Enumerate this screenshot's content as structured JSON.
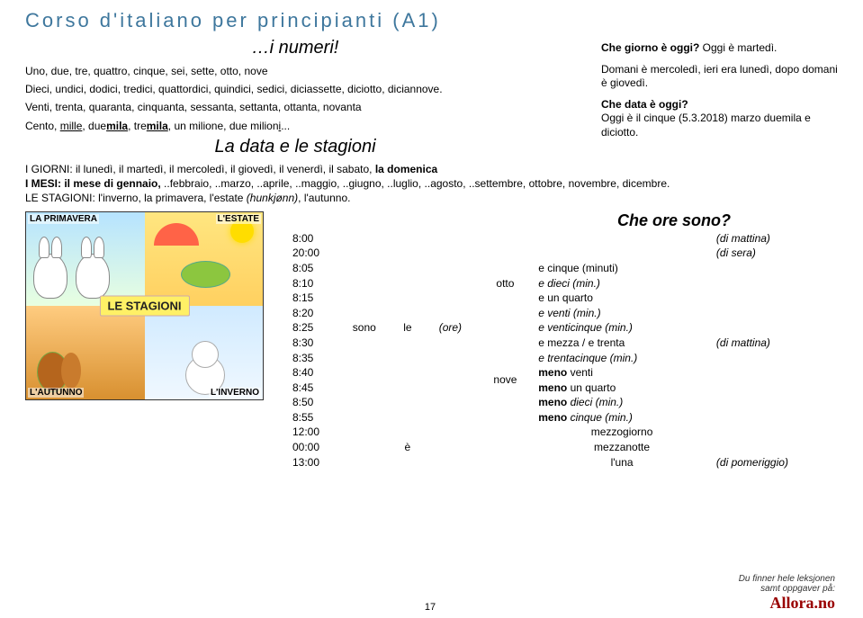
{
  "header": {
    "title": "Corso d'italiano per principianti (A1)"
  },
  "sec_numeri": {
    "heading": "…i numeri!",
    "line1": "Uno, due, tre, quattro, cinque, sei, sette, otto, nove",
    "line2": "Dieci, undici, dodici, tredici, quattordici, quindici, sedici, diciassette, diciotto, diciannove.",
    "line3": "Venti, trenta, quaranta, cinquanta, sessanta, settanta, ottanta, novanta",
    "line4_pre": "Cento, ",
    "line4_a": "mille",
    "line4_b": ", due",
    "line4_c": "mila",
    "line4_d": ", tre",
    "line4_e": "mila",
    "line4_f": ", un milione, due milion",
    "line4_g": "i",
    "line4_h": "..."
  },
  "sidebar": {
    "q1": "Che giorno è oggi?",
    "a1": " Oggi è martedì.",
    "q2": "Domani è mercoledì, ieri era lunedì, dopo domani è giovedì.",
    "q3": "Che data è oggi?",
    "a3": "Oggi è il cinque (5.3.2018) marzo duemila e diciotto."
  },
  "sec_data": {
    "heading": "La data e le stagioni",
    "days_pre": "I GIORNI: il lunedì, il martedì, il mercoledì, il giovedì, il venerdì, il sabato, ",
    "days_last": "la domenica",
    "months_pre": "I MESI: il mese di gennaio,",
    "months_rest": " ..febbraio, ..marzo, ..aprile, ..maggio, ..giugno, ..luglio, ..agosto, ..settembre, ottobre, novembre, dicembre.",
    "seasons_pre": "LE STAGIONI: l'inverno, la primavera, l'estate ",
    "seasons_paren": "(hunkjønn)",
    "seasons_rest": ", l'autunno."
  },
  "illus": {
    "center": "LE STAGIONI",
    "spring": "LA PRIMAVERA",
    "summer": "L'ESTATE",
    "autumn": "L'AUTUNNO",
    "winter": "L'INVERNO"
  },
  "times": {
    "heading": "Che ore sono?",
    "sono": "sono",
    "le": "le",
    "ore": "(ore)",
    "e": "è",
    "luna": "l'una",
    "otto": "otto",
    "nove": "nove",
    "rows": [
      {
        "t": "8:00",
        "r": "",
        "p": "(di mattina)"
      },
      {
        "t": "20:00",
        "r": "",
        "p": "(di sera)"
      },
      {
        "t": "8:05",
        "r": "e cinque (minuti)"
      },
      {
        "t": "8:10",
        "r": "e dieci (min.)"
      },
      {
        "t": "8:15",
        "r": "e un quarto"
      },
      {
        "t": "8:20",
        "r": "e venti (min.)"
      },
      {
        "t": "8:25",
        "r": "e venticinque (min.)"
      },
      {
        "t": "8:30",
        "r": "e mezza / e trenta",
        "p": "(di mattina)"
      },
      {
        "t": "8:35",
        "r": "e trentacinque (min.)"
      },
      {
        "t": "8:40",
        "r_b": "meno",
        "r_rest": " venti"
      },
      {
        "t": "8:45",
        "r_b": "meno",
        "r_rest": " un quarto"
      },
      {
        "t": "8:50",
        "r_b": "meno",
        "r_rest": " dieci (min.)"
      },
      {
        "t": "8:55",
        "r_b": "meno",
        "r_rest": " cinque (min.)"
      }
    ],
    "r12": "12:00",
    "mezzogiorno": "mezzogiorno",
    "r00": "00:00",
    "mezzanotte": "mezzanotte",
    "r13": "13:00",
    "pomeriggio": "(di pomeriggio)"
  },
  "footer": {
    "page": "17",
    "note1": "Du finner hele leksjonen",
    "note2": "samt oppgaver på:",
    "brand": "Allora.no"
  }
}
